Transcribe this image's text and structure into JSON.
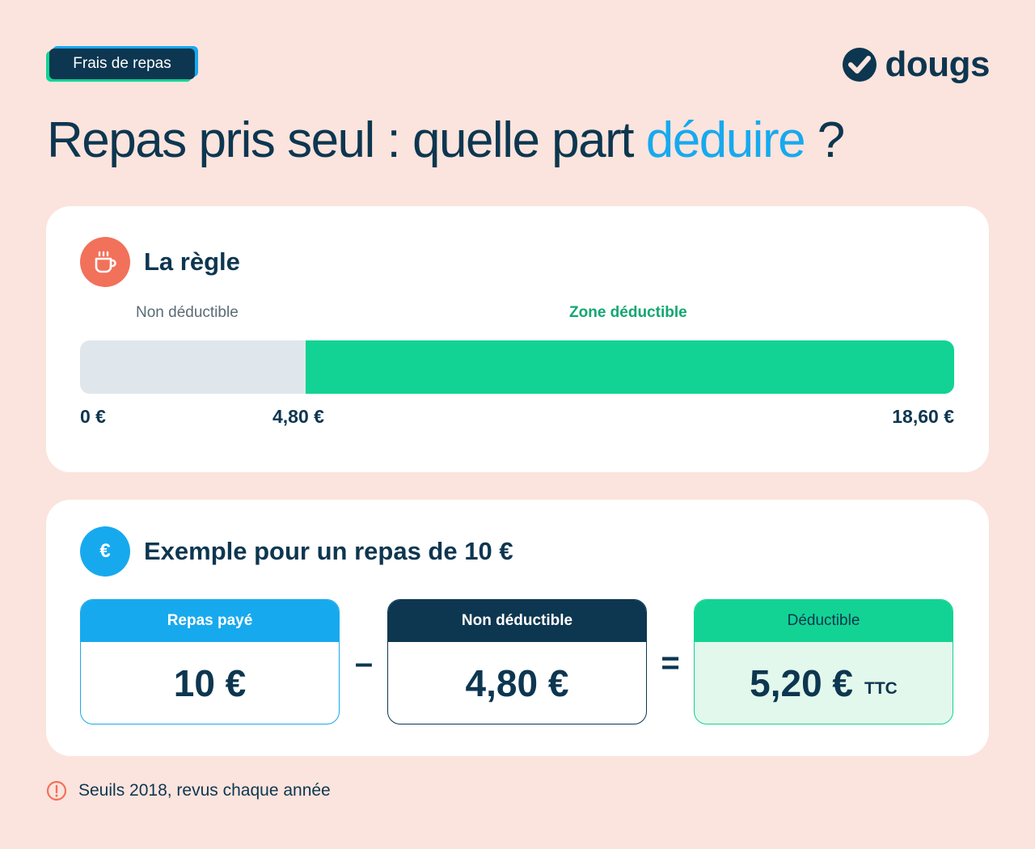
{
  "tag": {
    "label": "Frais de repas"
  },
  "logo": {
    "text": "dougs",
    "icon": "check-circle-icon"
  },
  "title": {
    "prefix": "Repas pris seul : quelle part ",
    "accent": "déduire",
    "suffix": " ?"
  },
  "rule_card": {
    "title": "La règle",
    "icon": "coffee-cup-icon",
    "label_non_deductible": "Non déductible",
    "label_zone": "Zone déductible",
    "ticks": [
      "0 €",
      "4,80 €",
      "18,60 €"
    ],
    "threshold_value": 4.8,
    "max_value": 18.6
  },
  "example_card": {
    "title": "Exemple pour un repas de 10 €",
    "icon": "euro-icon",
    "icon_text": "€",
    "boxes": [
      {
        "label": "Repas payé",
        "value": "10 €"
      },
      {
        "label": "Non déductible",
        "value": "4,80 €"
      },
      {
        "label": "Déductible",
        "value": "5,20 €",
        "unit": "TTC"
      }
    ],
    "operators": [
      "–",
      "="
    ]
  },
  "footnote": {
    "text": "Seuils 2018, revus chaque année",
    "icon": "warning-circle-icon"
  },
  "colors": {
    "background": "#fbe4dd",
    "navy": "#0d3650",
    "blue": "#17a9ee",
    "green": "#12d394",
    "orange": "#f2715a"
  }
}
